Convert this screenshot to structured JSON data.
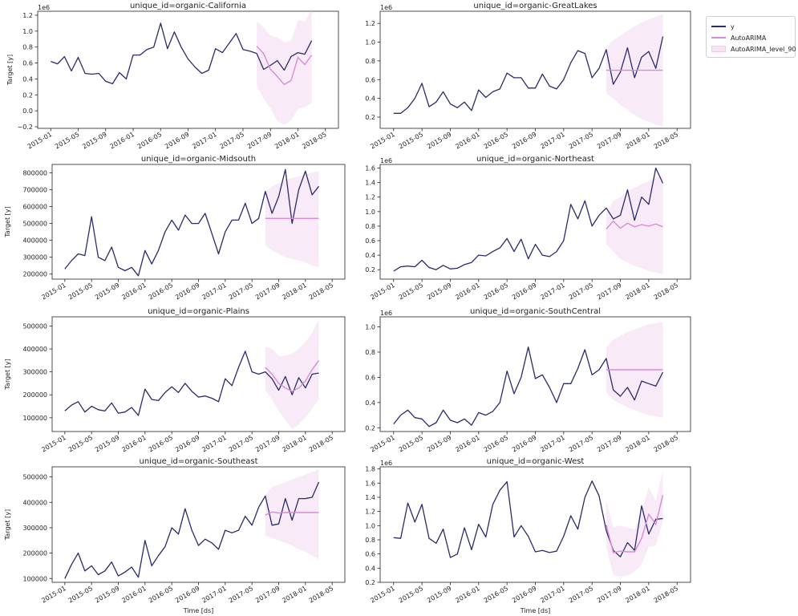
{
  "colors": {
    "y": "#2b2a6b",
    "forecast": "#d98ad6",
    "band": "#e6b8e2",
    "axis": "#222222"
  },
  "shared": {
    "x_tick_labels": [
      "2015-01",
      "2015-05",
      "2015-09",
      "2016-01",
      "2016-05",
      "2016-09",
      "2017-01",
      "2017-05",
      "2017-09",
      "2018-01",
      "2018-05"
    ],
    "ylabel": "Target [y]",
    "xlabel": "Time [ds]"
  },
  "legend": {
    "y": "y",
    "model": "AutoARIMA",
    "band": "AutoARIMA_level_90",
    "placement": "outside right, top"
  },
  "chart_data": [
    {
      "type": "line",
      "title": "unique_id=organic-California",
      "ylabel": "Target [y]",
      "xlabel": "",
      "offset_label": "1e6",
      "ylim": [
        -0.22,
        1.25
      ],
      "yticks": [
        -0.2,
        0.0,
        0.2,
        0.4,
        0.6,
        0.8,
        1.0,
        1.2
      ],
      "ytick_labels": [
        "−0.2",
        "0.0",
        "0.2",
        "0.4",
        "0.6",
        "0.8",
        "1.0",
        "1.2"
      ],
      "history": [
        0.62,
        0.59,
        0.68,
        0.5,
        0.67,
        0.47,
        0.46,
        0.47,
        0.37,
        0.34,
        0.48,
        0.4,
        0.7,
        0.7,
        0.77,
        0.8,
        1.1,
        0.78,
        0.99,
        0.8,
        0.65,
        0.55,
        0.47,
        0.51,
        0.78,
        0.73,
        0.85,
        0.97,
        0.77,
        0.75,
        0.72
      ],
      "actual_fc": [
        0.72,
        0.52,
        0.57,
        0.63,
        0.51,
        0.68,
        0.73,
        0.71,
        0.88
      ],
      "forecast": [
        0.81,
        0.72,
        0.52,
        0.43,
        0.33,
        0.38,
        0.67,
        0.58,
        0.7
      ],
      "lo": [
        0.32,
        0.15,
        0.03,
        -0.13,
        -0.18,
        -0.12,
        0.02,
        0.05,
        0.1
      ],
      "hi": [
        1.12,
        1.05,
        0.95,
        0.92,
        0.86,
        0.88,
        1.14,
        1.12,
        1.29
      ]
    },
    {
      "type": "line",
      "title": "unique_id=organic-GreatLakes",
      "ylabel": "",
      "xlabel": "",
      "offset_label": "1e6",
      "ylim": [
        0.08,
        1.33
      ],
      "yticks": [
        0.2,
        0.4,
        0.6,
        0.8,
        1.0,
        1.2
      ],
      "ytick_labels": [
        "0.2",
        "0.4",
        "0.6",
        "0.8",
        "1.0",
        "1.2"
      ],
      "history": [
        0.24,
        0.24,
        0.3,
        0.4,
        0.56,
        0.31,
        0.36,
        0.47,
        0.34,
        0.3,
        0.36,
        0.27,
        0.49,
        0.41,
        0.47,
        0.5,
        0.67,
        0.62,
        0.62,
        0.51,
        0.51,
        0.66,
        0.53,
        0.5,
        0.6,
        0.78,
        0.91,
        0.88,
        0.62,
        0.72,
        0.92
      ],
      "actual_fc": [
        0.92,
        0.55,
        0.68,
        0.94,
        0.62,
        0.84,
        0.9,
        0.72,
        1.06
      ],
      "forecast": [
        0.7,
        0.7,
        0.7,
        0.7,
        0.7,
        0.7,
        0.7,
        0.7,
        0.7
      ],
      "lo": [
        0.45,
        0.4,
        0.33,
        0.28,
        0.22,
        0.18,
        0.15,
        0.12,
        0.1
      ],
      "hi": [
        0.95,
        1.02,
        1.07,
        1.12,
        1.17,
        1.21,
        1.24,
        1.27,
        1.3
      ]
    },
    {
      "type": "line",
      "title": "unique_id=organic-Midsouth",
      "ylabel": "Target [y]",
      "xlabel": "",
      "offset_label": "",
      "ylim": [
        170000,
        850000
      ],
      "yticks": [
        200000,
        300000,
        400000,
        500000,
        600000,
        700000,
        800000
      ],
      "ytick_labels": [
        "200000",
        "300000",
        "400000",
        "500000",
        "600000",
        "700000",
        "800000"
      ],
      "history": [
        230000,
        280000,
        320000,
        310000,
        540000,
        300000,
        280000,
        360000,
        240000,
        220000,
        240000,
        190000,
        340000,
        260000,
        340000,
        450000,
        520000,
        460000,
        550000,
        500000,
        500000,
        560000,
        440000,
        320000,
        450000,
        520000,
        520000,
        620000,
        500000,
        530000,
        690000
      ],
      "actual_fc": [
        690000,
        560000,
        660000,
        820000,
        500000,
        700000,
        810000,
        670000,
        720000
      ],
      "forecast": [
        530000,
        530000,
        530000,
        530000,
        530000,
        530000,
        530000,
        530000,
        530000
      ],
      "lo": [
        370000,
        340000,
        320000,
        300000,
        290000,
        280000,
        270000,
        250000,
        240000
      ],
      "hi": [
        690000,
        720000,
        740000,
        760000,
        770000,
        780000,
        790000,
        800000,
        810000
      ]
    },
    {
      "type": "line",
      "title": "unique_id=organic-Northeast",
      "ylabel": "",
      "xlabel": "",
      "offset_label": "1e6",
      "ylim": [
        0.07,
        1.65
      ],
      "yticks": [
        0.2,
        0.4,
        0.6,
        0.8,
        1.0,
        1.2,
        1.4,
        1.6
      ],
      "ytick_labels": [
        "0.2",
        "0.4",
        "0.6",
        "0.8",
        "1.0",
        "1.2",
        "1.4",
        "1.6"
      ],
      "history": [
        0.18,
        0.24,
        0.25,
        0.24,
        0.33,
        0.23,
        0.2,
        0.26,
        0.21,
        0.22,
        0.27,
        0.3,
        0.4,
        0.39,
        0.45,
        0.5,
        0.63,
        0.45,
        0.62,
        0.35,
        0.55,
        0.4,
        0.38,
        0.45,
        0.6,
        1.1,
        0.9,
        1.15,
        0.8,
        0.95,
        1.05
      ],
      "actual_fc": [
        1.05,
        0.9,
        0.95,
        1.3,
        0.88,
        1.2,
        1.1,
        1.6,
        1.39
      ],
      "forecast": [
        0.76,
        0.87,
        0.77,
        0.84,
        0.79,
        0.82,
        0.8,
        0.83,
        0.79
      ],
      "lo": [
        0.55,
        0.45,
        0.35,
        0.3,
        0.25,
        0.22,
        0.18,
        0.16,
        0.14
      ],
      "hi": [
        0.98,
        1.15,
        1.2,
        1.28,
        1.33,
        1.38,
        1.42,
        1.47,
        1.5
      ]
    },
    {
      "type": "line",
      "title": "unique_id=organic-Plains",
      "ylabel": "Target [y]",
      "xlabel": "",
      "offset_label": "",
      "ylim": [
        40000,
        540000
      ],
      "yticks": [
        100000,
        200000,
        300000,
        400000,
        500000
      ],
      "ytick_labels": [
        "100000",
        "200000",
        "300000",
        "400000",
        "500000"
      ],
      "history": [
        130000,
        155000,
        170000,
        125000,
        150000,
        135000,
        130000,
        165000,
        120000,
        125000,
        145000,
        110000,
        225000,
        180000,
        175000,
        210000,
        235000,
        210000,
        250000,
        215000,
        190000,
        195000,
        185000,
        170000,
        270000,
        240000,
        320000,
        390000,
        300000,
        290000,
        300000
      ],
      "actual_fc": [
        300000,
        270000,
        220000,
        280000,
        200000,
        275000,
        230000,
        290000,
        295000
      ],
      "forecast": [
        320000,
        290000,
        250000,
        230000,
        215000,
        230000,
        260000,
        310000,
        350000
      ],
      "lo": [
        220000,
        180000,
        130000,
        90000,
        50000,
        70000,
        100000,
        140000,
        180000
      ],
      "hi": [
        410000,
        400000,
        370000,
        370000,
        380000,
        400000,
        430000,
        470000,
        530000
      ]
    },
    {
      "type": "line",
      "title": "unique_id=organic-SouthCentral",
      "ylabel": "",
      "xlabel": "",
      "offset_label": "1e6",
      "ylim": [
        0.17,
        1.08
      ],
      "yticks": [
        0.2,
        0.4,
        0.6,
        0.8,
        1.0
      ],
      "ytick_labels": [
        "0.2",
        "0.4",
        "0.6",
        "0.8",
        "1.0"
      ],
      "history": [
        0.23,
        0.3,
        0.34,
        0.28,
        0.27,
        0.21,
        0.24,
        0.34,
        0.26,
        0.24,
        0.27,
        0.22,
        0.32,
        0.3,
        0.33,
        0.4,
        0.65,
        0.47,
        0.6,
        0.84,
        0.59,
        0.62,
        0.52,
        0.4,
        0.55,
        0.55,
        0.67,
        0.82,
        0.62,
        0.66,
        0.75
      ],
      "actual_fc": [
        0.75,
        0.5,
        0.45,
        0.52,
        0.42,
        0.57,
        0.55,
        0.53,
        0.64
      ],
      "forecast": [
        0.66,
        0.66,
        0.66,
        0.66,
        0.66,
        0.66,
        0.66,
        0.66,
        0.66
      ],
      "lo": [
        0.48,
        0.42,
        0.39,
        0.36,
        0.34,
        0.32,
        0.3,
        0.29,
        0.28
      ],
      "hi": [
        0.84,
        0.9,
        0.93,
        0.96,
        0.98,
        1.0,
        1.02,
        1.03,
        1.04
      ]
    },
    {
      "type": "line",
      "title": "unique_id=organic-Southeast",
      "ylabel": "Target [y]",
      "xlabel": "Time [ds]",
      "offset_label": "",
      "ylim": [
        85000,
        540000
      ],
      "yticks": [
        100000,
        200000,
        300000,
        400000,
        500000
      ],
      "ytick_labels": [
        "100000",
        "200000",
        "300000",
        "400000",
        "500000"
      ],
      "history": [
        100000,
        155000,
        200000,
        130000,
        150000,
        115000,
        130000,
        165000,
        110000,
        125000,
        145000,
        105000,
        250000,
        150000,
        190000,
        225000,
        300000,
        275000,
        375000,
        290000,
        230000,
        255000,
        240000,
        215000,
        290000,
        280000,
        290000,
        345000,
        310000,
        380000,
        425000
      ],
      "actual_fc": [
        425000,
        310000,
        315000,
        415000,
        330000,
        415000,
        415000,
        420000,
        480000
      ],
      "forecast": [
        350000,
        362000,
        358000,
        360000,
        360000,
        360000,
        360000,
        360000,
        360000
      ],
      "lo": [
        270000,
        260000,
        250000,
        240000,
        230000,
        215000,
        205000,
        190000,
        175000
      ],
      "hi": [
        430000,
        460000,
        470000,
        480000,
        490000,
        500000,
        510000,
        520000,
        530000
      ]
    },
    {
      "type": "line",
      "title": "unique_id=organic-West",
      "ylabel": "",
      "xlabel": "Time [ds]",
      "offset_label": "1e6",
      "ylim": [
        0.2,
        1.83
      ],
      "yticks": [
        0.2,
        0.4,
        0.6,
        0.8,
        1.0,
        1.2,
        1.4,
        1.6,
        1.8
      ],
      "ytick_labels": [
        "0.2",
        "0.4",
        "0.6",
        "0.8",
        "1.0",
        "1.2",
        "1.4",
        "1.6",
        "1.8"
      ],
      "history": [
        0.83,
        0.82,
        1.32,
        1.05,
        1.3,
        0.82,
        0.75,
        0.95,
        0.55,
        0.6,
        0.97,
        0.66,
        1.02,
        0.84,
        1.3,
        1.5,
        1.62,
        0.84,
        1.0,
        0.85,
        0.63,
        0.65,
        0.62,
        0.64,
        0.85,
        1.14,
        0.95,
        1.4,
        1.63,
        1.42,
        0.93
      ],
      "actual_fc": [
        0.92,
        0.65,
        0.56,
        0.76,
        0.65,
        1.28,
        0.88,
        1.09,
        1.1
      ],
      "forecast": [
        1.01,
        0.62,
        0.64,
        0.63,
        0.63,
        0.82,
        1.16,
        1.02,
        1.43
      ],
      "lo": [
        0.7,
        0.3,
        0.28,
        0.3,
        0.35,
        0.45,
        0.7,
        0.72,
        1.05
      ],
      "hi": [
        1.35,
        0.98,
        1.0,
        0.97,
        0.95,
        1.2,
        1.55,
        1.35,
        1.78
      ]
    }
  ]
}
